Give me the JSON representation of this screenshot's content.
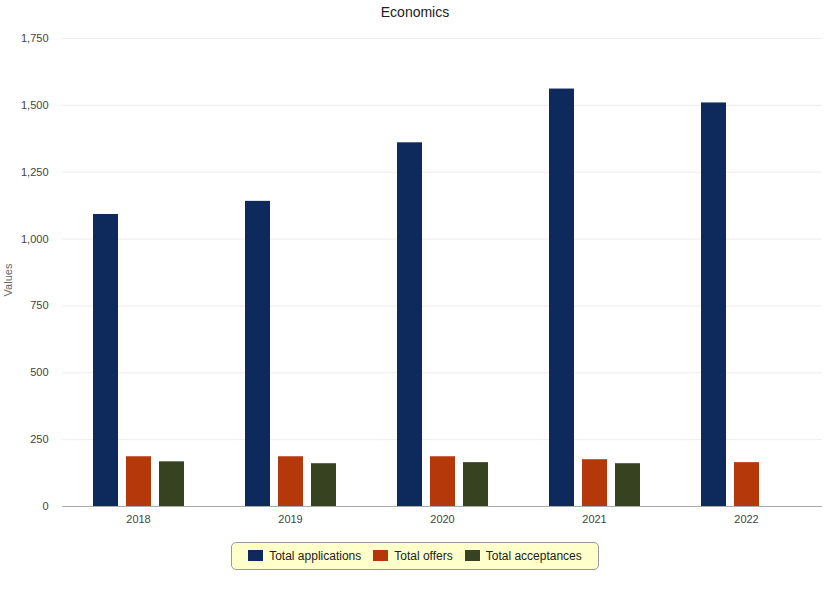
{
  "chart_data": {
    "type": "bar",
    "title": "Economics",
    "y_label": "Values",
    "categories": [
      "2018",
      "2019",
      "2020",
      "2021",
      "2022"
    ],
    "series": [
      {
        "name": "Total applications",
        "color": "#0e2a5c",
        "values": [
          1092,
          1141,
          1360,
          1561,
          1509
        ]
      },
      {
        "name": "Total offers",
        "color": "#b5380b",
        "values": [
          186,
          186,
          186,
          175,
          164
        ]
      },
      {
        "name": "Total acceptances",
        "color": "#374220",
        "values": [
          167,
          160,
          164,
          160,
          null
        ]
      }
    ],
    "ylim": [
      0,
      1750
    ],
    "yticks": [
      0,
      250,
      500,
      750,
      1000,
      1250,
      1500,
      1750
    ],
    "grid": true,
    "legend": "bottom"
  }
}
